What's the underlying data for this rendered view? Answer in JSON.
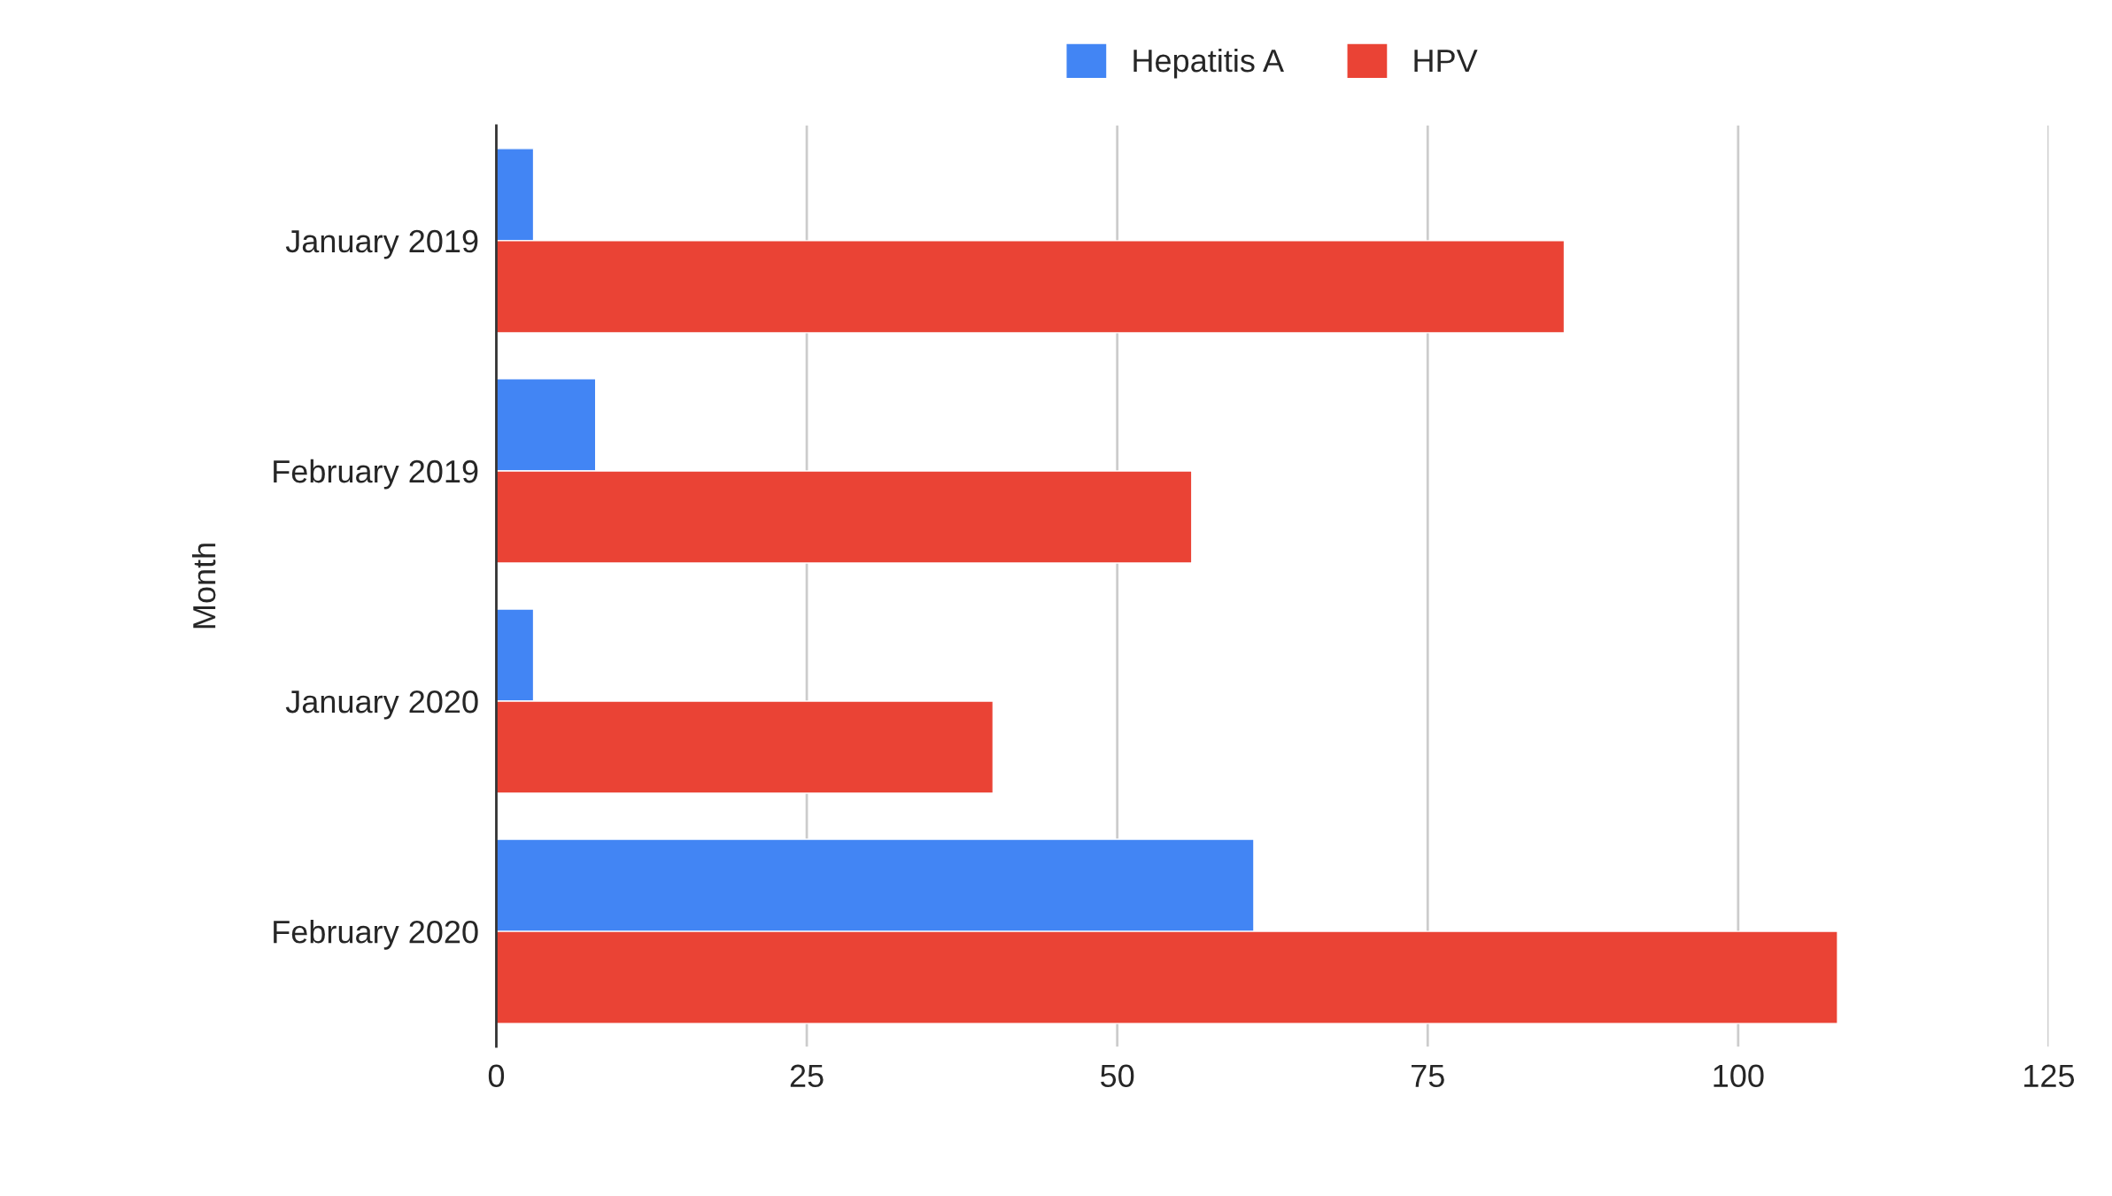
{
  "chart_data": {
    "type": "bar",
    "orientation": "horizontal",
    "ylabel": "Month",
    "categories": [
      "January 2019",
      "February 2019",
      "January 2020",
      "February 2020"
    ],
    "series": [
      {
        "name": "Hepatitis A",
        "color": "#4285f4",
        "values": [
          3,
          8,
          3,
          61
        ]
      },
      {
        "name": "HPV",
        "color": "#ea4335",
        "values": [
          86,
          56,
          40,
          108
        ]
      }
    ],
    "xlim": [
      0,
      125
    ],
    "xticks": [
      0,
      25,
      50,
      75,
      100,
      125
    ],
    "grid": "x",
    "legend": "top"
  }
}
